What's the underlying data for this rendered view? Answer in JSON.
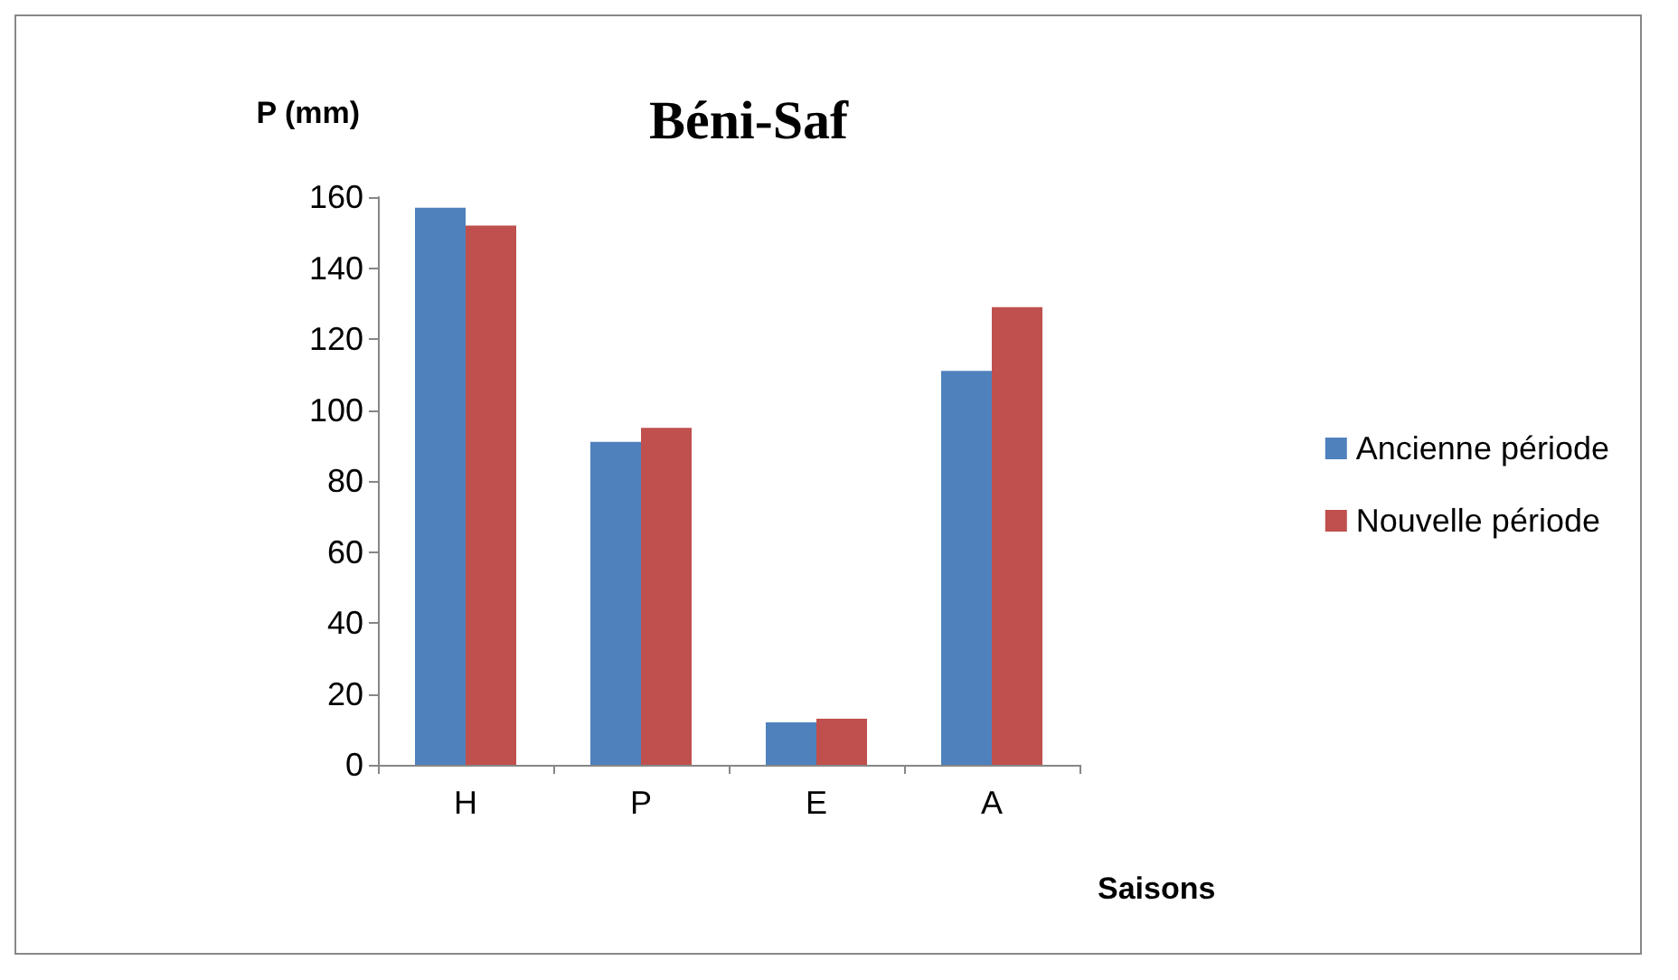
{
  "chart_data": {
    "type": "bar",
    "title": "Béni-Saf",
    "ylabel": "P (mm)",
    "xlabel": "Saisons",
    "categories": [
      "H",
      "P",
      "E",
      "A"
    ],
    "series": [
      {
        "name": "Ancienne période",
        "color": "#4f81bd",
        "values": [
          157,
          91,
          12,
          111
        ]
      },
      {
        "name": "Nouvelle période",
        "color": "#c0504d",
        "values": [
          152,
          95,
          13,
          129
        ]
      }
    ],
    "ylim": [
      0,
      160
    ],
    "yticks": [
      0,
      20,
      40,
      60,
      80,
      100,
      120,
      140,
      160
    ],
    "grid": false,
    "legend": "right"
  }
}
